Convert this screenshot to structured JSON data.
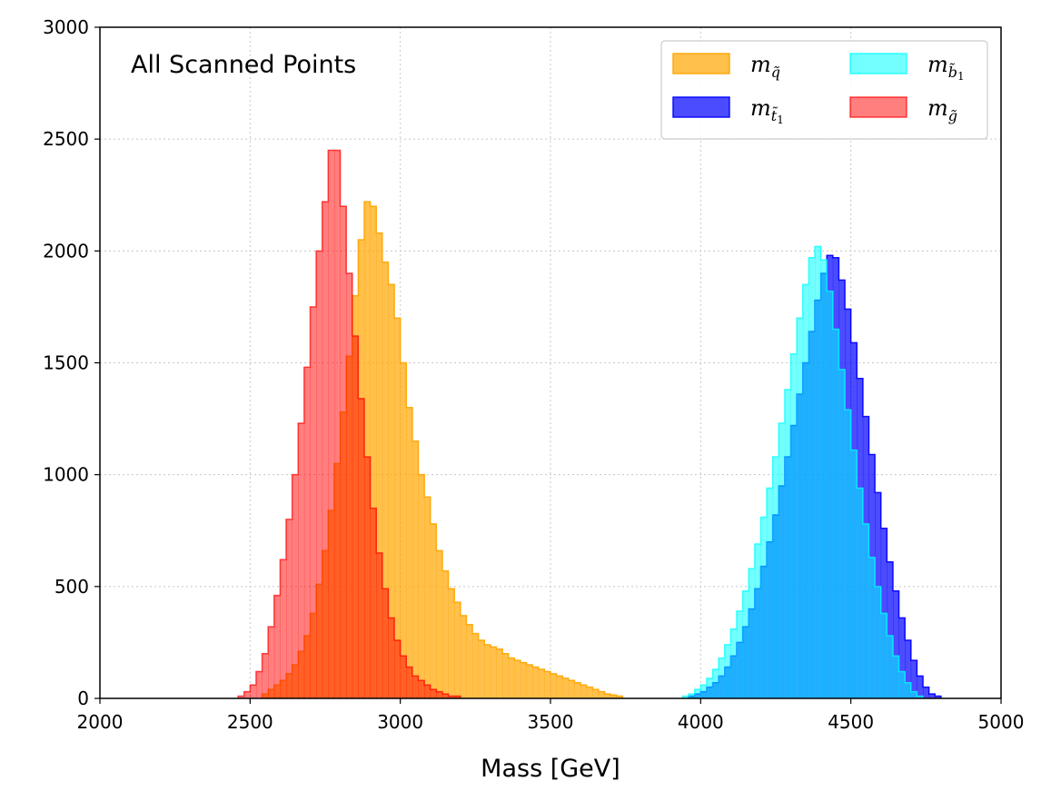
{
  "chart_data": {
    "type": "histogram",
    "annotation": "All Scanned Points",
    "xlabel": "Mass [GeV]",
    "ylabel": "",
    "xlim": [
      2000,
      5000
    ],
    "ylim": [
      0,
      3000
    ],
    "x_ticks": [
      "2000",
      "2500",
      "3000",
      "3500",
      "4000",
      "4500",
      "5000"
    ],
    "y_ticks": [
      "0",
      "500",
      "1000",
      "1500",
      "2000",
      "2500",
      "3000"
    ],
    "grid": true,
    "legend_placement": "top-right",
    "legend_columns": 2,
    "bin_width": 20,
    "series": [
      {
        "name": "m_q̃",
        "label_main": "m",
        "label_sub": "q̃",
        "color": "#ffa500",
        "alpha": 0.7,
        "bin_start": 2540,
        "counts": [
          20,
          40,
          60,
          80,
          110,
          150,
          210,
          280,
          380,
          510,
          660,
          840,
          1050,
          1280,
          1530,
          1800,
          2050,
          2220,
          2200,
          2080,
          1950,
          1850,
          1700,
          1500,
          1300,
          1150,
          1000,
          900,
          780,
          660,
          570,
          490,
          430,
          370,
          330,
          290,
          260,
          240,
          230,
          220,
          200,
          180,
          170,
          160,
          150,
          140,
          130,
          120,
          110,
          100,
          90,
          80,
          70,
          60,
          50,
          40,
          30,
          20,
          15,
          10
        ]
      },
      {
        "name": "m_t̃1",
        "label_main": "m",
        "label_sub": "t̃",
        "label_subsub": "1",
        "color": "#0000ff",
        "alpha": 0.7,
        "bin_start": 3960,
        "counts": [
          10,
          20,
          30,
          50,
          70,
          100,
          140,
          190,
          250,
          320,
          400,
          490,
          590,
          700,
          820,
          950,
          1080,
          1220,
          1360,
          1500,
          1640,
          1780,
          1900,
          1980,
          1970,
          1870,
          1740,
          1590,
          1430,
          1260,
          1090,
          920,
          760,
          610,
          480,
          360,
          260,
          170,
          100,
          50,
          20,
          10
        ]
      },
      {
        "name": "m_b̃1",
        "label_main": "m",
        "label_sub": "b̃",
        "label_subsub": "1",
        "color": "#00ffff",
        "alpha": 0.55,
        "bin_start": 3940,
        "counts": [
          10,
          20,
          40,
          60,
          90,
          130,
          180,
          240,
          310,
          390,
          480,
          580,
          690,
          810,
          940,
          1080,
          1230,
          1380,
          1540,
          1700,
          1850,
          1970,
          2020,
          1960,
          1820,
          1650,
          1470,
          1290,
          1110,
          940,
          780,
          630,
          500,
          380,
          280,
          190,
          120,
          70,
          30,
          10
        ]
      },
      {
        "name": "m_g̃",
        "label_main": "m",
        "label_sub": "g̃",
        "color": "#ff0000",
        "alpha": 0.5,
        "bin_start": 2460,
        "counts": [
          10,
          30,
          60,
          120,
          200,
          320,
          460,
          620,
          800,
          1000,
          1230,
          1480,
          1750,
          2000,
          2220,
          2450,
          2450,
          2200,
          1900,
          1620,
          1340,
          1080,
          850,
          650,
          490,
          360,
          260,
          190,
          140,
          100,
          80,
          60,
          40,
          30,
          20,
          10,
          10
        ]
      }
    ]
  }
}
